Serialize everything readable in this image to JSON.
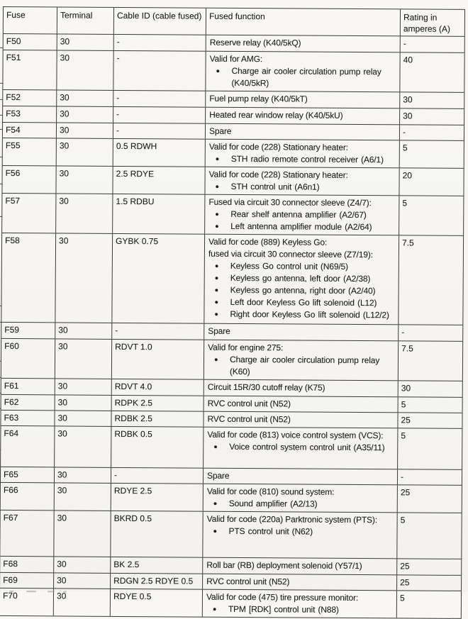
{
  "glyphs": {
    "bullet": "●"
  },
  "table": {
    "headers": {
      "fuse": "Fuse",
      "terminal": "Terminal",
      "cable": "Cable ID (cable fused)",
      "function": "Fused function",
      "rating": "Rating in amperes (A)"
    },
    "rows": [
      {
        "fuse": "F50",
        "terminal": "30",
        "cable": "-",
        "function": [
          {
            "t": "Reserve relay (K40/5kQ)"
          }
        ],
        "rating": "-"
      },
      {
        "fuse": "F51",
        "terminal": "30",
        "cable": "-",
        "function": [
          {
            "t": "Valid for AMG:"
          },
          {
            "b": true,
            "t": "Charge air cooler circulation pump relay (K40/5kR)"
          }
        ],
        "rating": "40"
      },
      {
        "fuse": "F52",
        "terminal": "30",
        "cable": "-",
        "function": [
          {
            "t": "Fuel pump relay (K40/5kT)"
          }
        ],
        "rating": "30"
      },
      {
        "fuse": "F53",
        "terminal": "30",
        "cable": "-",
        "function": [
          {
            "t": "Heated rear window relay (K40/5kU)"
          }
        ],
        "rating": "30"
      },
      {
        "fuse": "F54",
        "terminal": "30",
        "cable": "-",
        "function": [
          {
            "t": "Spare"
          }
        ],
        "rating": "-"
      },
      {
        "fuse": "F55",
        "terminal": "30",
        "cable": "0.5 RDWH",
        "function": [
          {
            "t": "Valid for code (228) Stationary heater:"
          },
          {
            "b": true,
            "t": "STH radio remote control receiver (A6/1)"
          }
        ],
        "rating": "5"
      },
      {
        "fuse": "F56",
        "terminal": "30",
        "cable": "2.5 RDYE",
        "function": [
          {
            "t": "Valid for code (228) Stationary heater:"
          },
          {
            "b": true,
            "t": "STH control unit (A6n1)"
          }
        ],
        "rating": "20"
      },
      {
        "fuse": "F57",
        "terminal": "30",
        "cable": "1.5 RDBU",
        "function": [
          {
            "t": "Fused via circuit 30 connector sleeve (Z4/7):"
          },
          {
            "b": true,
            "t": "Rear shelf antenna amplifier (A2/67)"
          },
          {
            "b": true,
            "t": "Left antenna amplifier module (A2/64)"
          }
        ],
        "rating": "5"
      },
      {
        "fuse": "F58",
        "terminal": "30",
        "cable": "GYBK 0.75",
        "function": [
          {
            "t": "Valid for code (889) Keyless Go:"
          },
          {
            "t": "fused via circuit 30 connector sleeve (Z7/19):"
          },
          {
            "b": true,
            "t": "Keyless Go control unit (N69/5)"
          },
          {
            "b": true,
            "t": "Keyless go antenna, left door (A2/38)"
          },
          {
            "b": true,
            "t": "Keyless go antenna, right door (A2/40)"
          },
          {
            "b": true,
            "t": "Left door Keyless Go lift solenoid (L12)"
          },
          {
            "b": true,
            "t": "Right door Keyless Go lift solenoid (L12/2)"
          }
        ],
        "rating": "7.5"
      },
      {
        "fuse": "F59",
        "terminal": "30",
        "cable": "-",
        "function": [
          {
            "t": "Spare"
          }
        ],
        "rating": "-"
      },
      {
        "fuse": "F60",
        "terminal": "30",
        "cable": "RDVT 1.0",
        "function": [
          {
            "t": "Valid for engine 275:"
          },
          {
            "b": true,
            "t": "Charge air cooler circulation pump relay (K60)"
          }
        ],
        "rating": "7.5"
      },
      {
        "fuse": "F61",
        "terminal": "30",
        "cable": "RDVT 4.0",
        "function": [
          {
            "t": "Circuit 15R/30 cutoff relay (K75)"
          }
        ],
        "rating": "30"
      },
      {
        "fuse": "F62",
        "terminal": "30",
        "cable": "RDPK 2.5",
        "function": [
          {
            "t": "RVC control unit (N52)"
          }
        ],
        "rating": "5"
      },
      {
        "fuse": "F63",
        "terminal": "30",
        "cable": "RDBK 2.5",
        "function": [
          {
            "t": "RVC control unit (N52)"
          }
        ],
        "rating": "25"
      },
      {
        "fuse": "F64",
        "terminal": "30",
        "cable": "RDBK 0.5",
        "function": [
          {
            "t": "Valid for code (813) voice control system (VCS):"
          },
          {
            "b": true,
            "t": "Voice control system control unit (A35/11)"
          }
        ],
        "rating": "5"
      },
      {
        "fuse": "F65",
        "terminal": "30",
        "cable": "-",
        "function": [
          {
            "t": "Spare"
          }
        ],
        "rating": "-"
      },
      {
        "fuse": "F66",
        "terminal": "30",
        "cable": "RDYE 2.5",
        "function": [
          {
            "t": "Valid for code (810) sound system:"
          },
          {
            "b": true,
            "t": "Sound amplifier (A2/13)"
          }
        ],
        "rating": "25"
      },
      {
        "fuse": "F67",
        "terminal": "30",
        "cable": "BKRD 0.5",
        "function": [
          {
            "t": "Valid for code (220a) Parktronic system (PTS):"
          },
          {
            "b": true,
            "t": "PTS control unit (N62)"
          }
        ],
        "rating": "5"
      },
      {
        "fuse": "F68",
        "terminal": "30",
        "cable": "BK 2.5",
        "function": [
          {
            "t": "Roll bar (RB) deployment solenoid (Y57/1)"
          }
        ],
        "rating": "25"
      },
      {
        "fuse": "F69",
        "terminal": "30",
        "cable": "RDGN 2.5 RDYE 0.5",
        "function": [
          {
            "t": "RVC control unit (N52)"
          }
        ],
        "rating": "25"
      },
      {
        "fuse": "F70",
        "terminal": "30",
        "cable": "RDYE 0.5",
        "function": [
          {
            "t": "Valid for code (475) tire pressure monitor:"
          },
          {
            "b": true,
            "t": "TPM [RDK] control unit (N88)"
          }
        ],
        "rating": "5"
      }
    ]
  }
}
